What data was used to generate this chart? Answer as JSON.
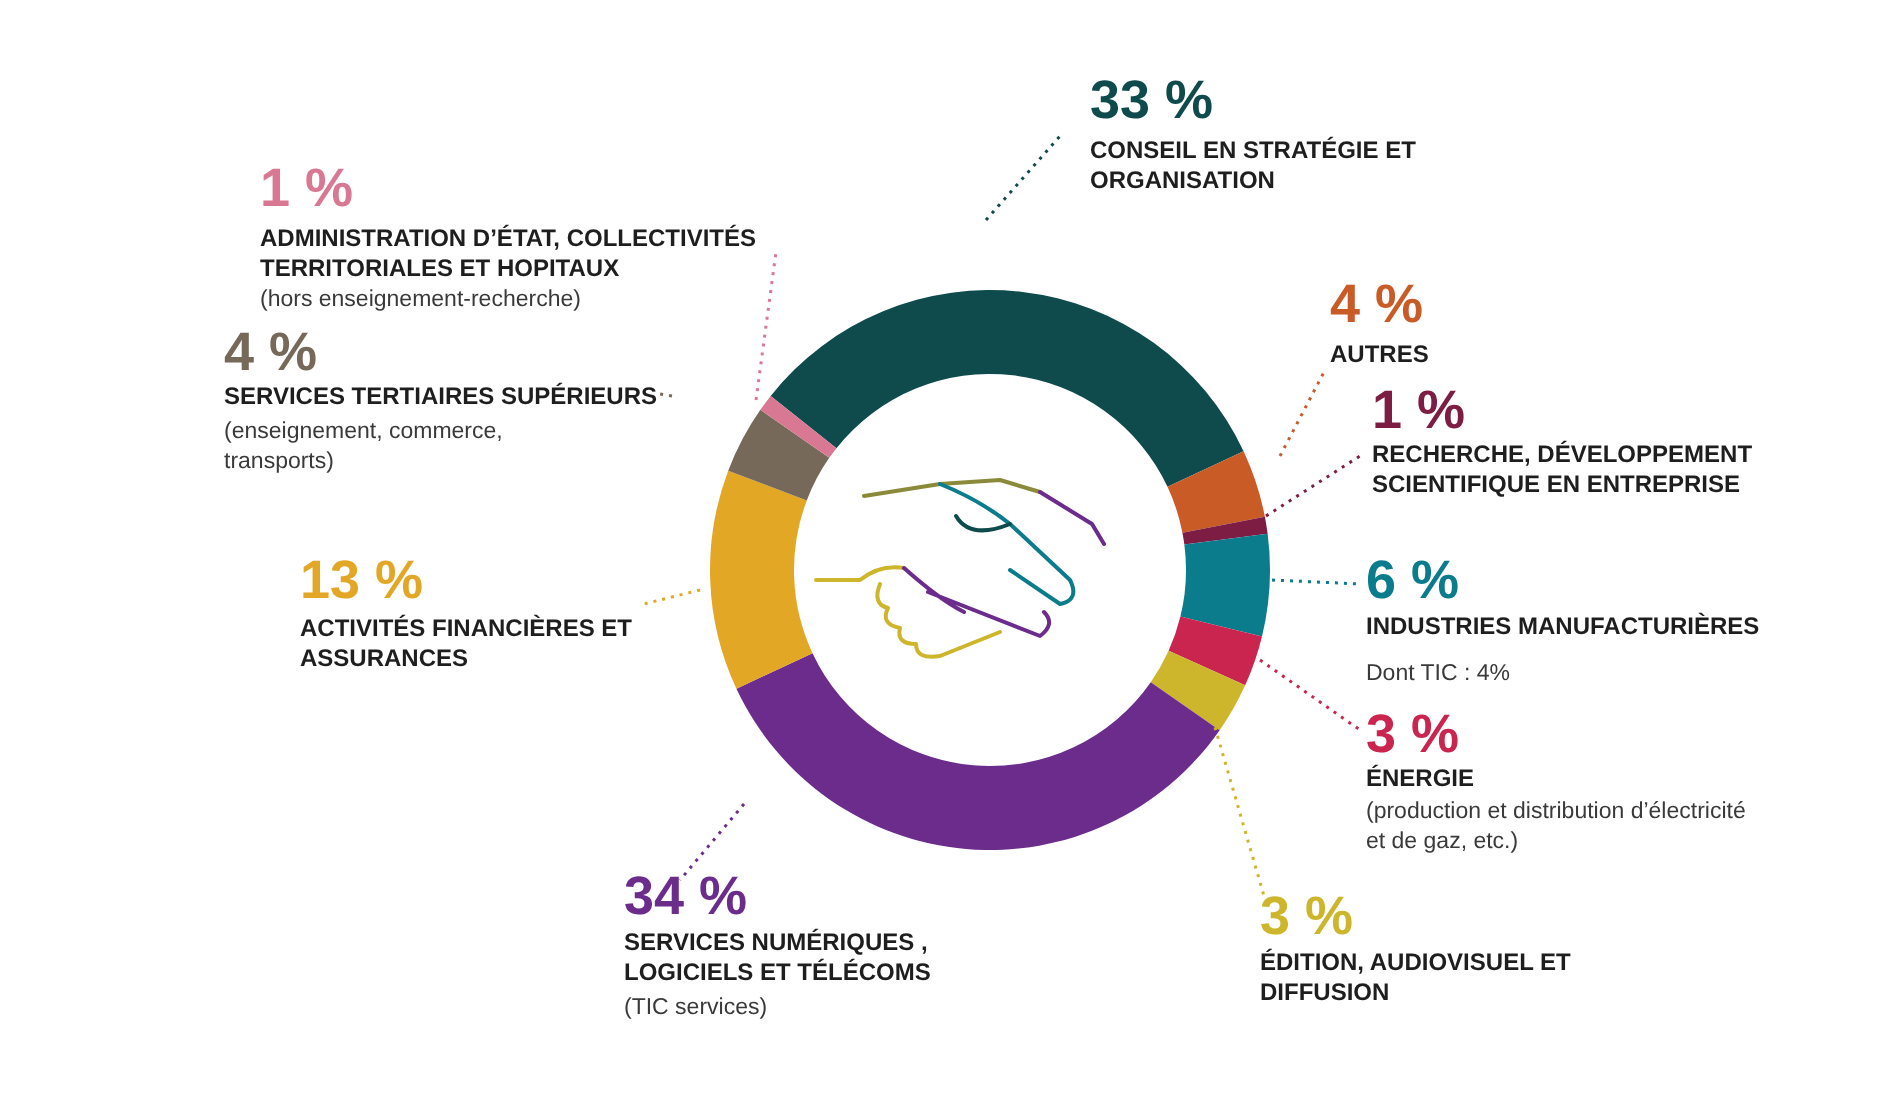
{
  "chart_data": {
    "type": "donut",
    "categories": [
      "CONSEIL EN STRATÉGIE ET ORGANISATION",
      "AUTRES",
      "RECHERCHE, DÉVELOPPEMENT SCIENTIFIQUE EN ENTREPRISE",
      "INDUSTRIES MANUFACTURIÈRES",
      "ÉNERGIE",
      "ÉDITION, AUDIOVISUEL ET DIFFUSION",
      "SERVICES NUMÉRIQUES , LOGICIELS ET TÉLÉCOMS",
      "ACTIVITÉS FINANCIÈRES ET ASSURANCES",
      "SERVICES TERTIAIRES SUPÉRIEURS",
      "ADMINISTRATION D’ÉTAT, COLLECTIVITÉS TERRITORIALES ET HOPITAUX"
    ],
    "values": [
      33,
      4,
      1,
      6,
      3,
      3,
      34,
      13,
      4,
      1
    ],
    "value_labels": [
      "33 %",
      "4 %",
      "1 %",
      "6 %",
      "3 %",
      "3 %",
      "34 %",
      "13 %",
      "4 %",
      "1 %"
    ],
    "colors": [
      "#0f4a4c",
      "#c95b27",
      "#7d1d44",
      "#0b7c8c",
      "#c9254f",
      "#cdb62c",
      "#6b2c8c",
      "#e2a825",
      "#77695a",
      "#d97892"
    ],
    "annotations": [
      "Dont TIC : 4%",
      "(production et distribution d’électricité et de gaz, etc.)",
      "(TIC services)",
      "(enseignement, commerce, transports)",
      "(hors enseignement-recherche)"
    ]
  }
}
